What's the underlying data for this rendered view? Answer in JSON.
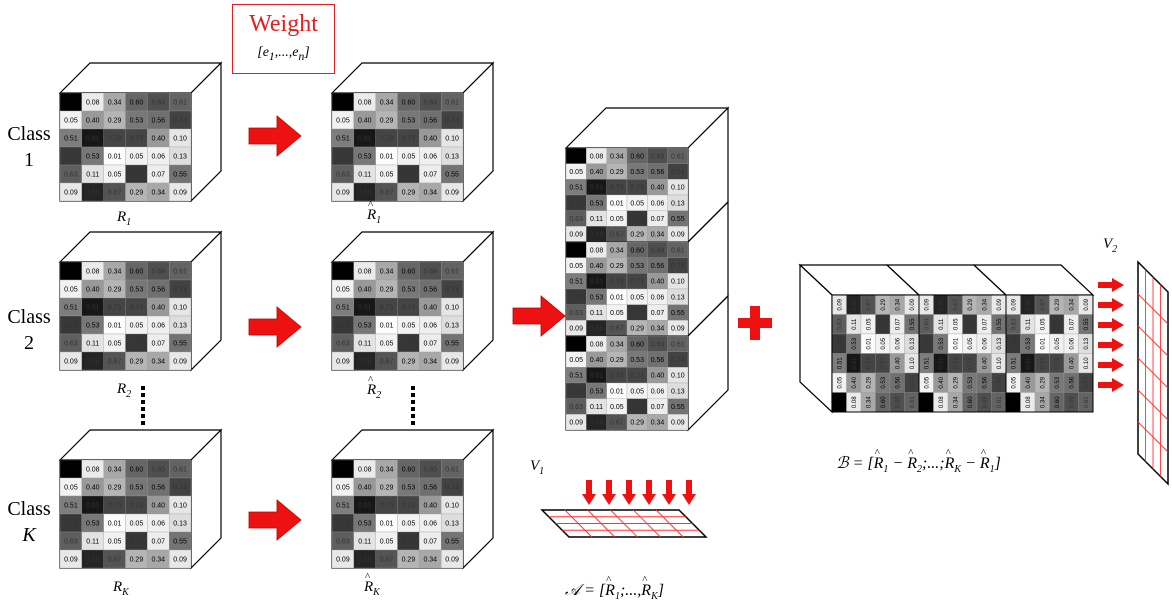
{
  "weight": {
    "title": "Weight",
    "vector": "[e1,...,en]"
  },
  "classes": [
    {
      "label_line1": "Class",
      "label_line2": "1",
      "input_label": "R1",
      "output_label": "R1"
    },
    {
      "label_line1": "Class",
      "label_line2": "2",
      "input_label": "R2",
      "output_label": "R2"
    },
    {
      "label_line1": "Class",
      "label_line2": "K",
      "input_label": "RK",
      "output_label": "RK"
    }
  ],
  "matrix_values": [
    [
      "",
      "0.08",
      "0.34",
      "0.60",
      "0.69",
      "0.61"
    ],
    [
      "0.05",
      "0.40",
      "0.29",
      "0.53",
      "0.56",
      "0.74"
    ],
    [
      "0.51",
      "0.91",
      "0.73",
      "0.73",
      "0.40",
      "0.10"
    ],
    [
      "0.78",
      "0.53",
      "0.01",
      "0.05",
      "0.06",
      "0.13"
    ],
    [
      "0.63",
      "0.11",
      "0.05",
      "0.79",
      "0.07",
      "0.55"
    ],
    [
      "0.09",
      "0.86",
      "0.67",
      "0.29",
      "0.34",
      "0.09"
    ]
  ],
  "labels": {
    "A_formula": "A = [R1;...,RK]",
    "B_formula": "B = [R1 − R2;...;RK − R1]",
    "V1": "V1",
    "V2": "V2"
  },
  "colors": {
    "arrow": "#ee1111",
    "grid": "#ff3333",
    "plus": "#ee1111",
    "arrow_small": "#ee1111"
  }
}
